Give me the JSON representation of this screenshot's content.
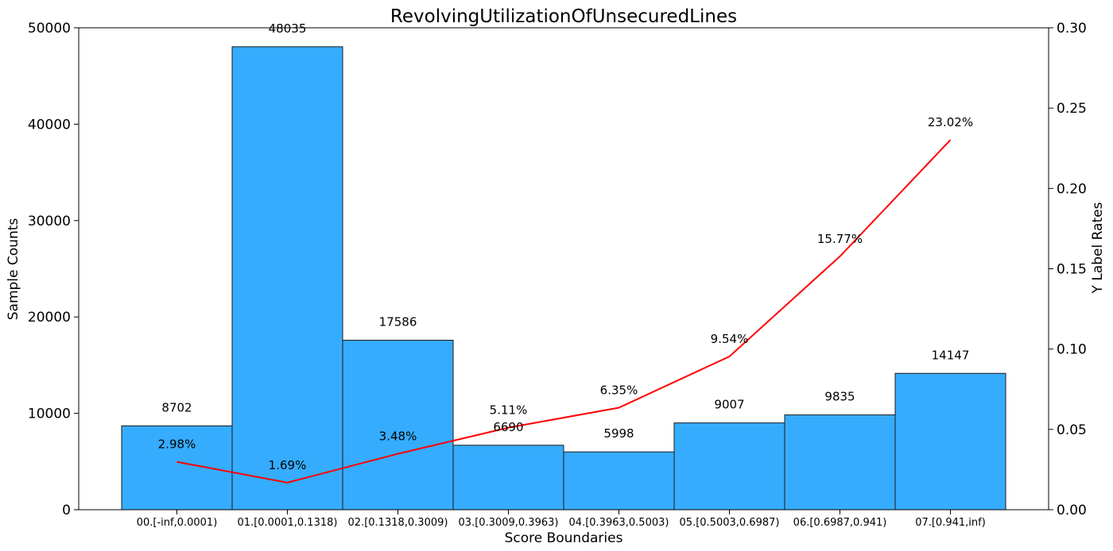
{
  "chart_data": {
    "type": "bar",
    "title": "RevolvingUtilizationOfUnsecuredLines",
    "xlabel": "Score Boundaries",
    "ylabel": "Sample Counts",
    "y2label": "Y Label Rates",
    "categories": [
      "00.[-inf,0.0001)",
      "01.[0.0001,0.1318)",
      "02.[0.1318,0.3009)",
      "03.[0.3009,0.3963)",
      "04.[0.3963,0.5003)",
      "05.[0.5003,0.6987)",
      "06.[0.6987,0.941)",
      "07.[0.941,inf)"
    ],
    "values": [
      8702,
      48035,
      17586,
      6690,
      5998,
      9007,
      9835,
      14147
    ],
    "value_labels": [
      "8702",
      "48035",
      "17586",
      "6690",
      "5998",
      "9007",
      "9835",
      "14147"
    ],
    "rates": [
      0.0298,
      0.0169,
      0.0348,
      0.0511,
      0.0635,
      0.0954,
      0.1577,
      0.2302
    ],
    "rate_labels": [
      "2.98%",
      "1.69%",
      "3.48%",
      "5.11%",
      "6.35%",
      "9.54%",
      "15.77%",
      "23.02%"
    ],
    "ylim": [
      0,
      50000
    ],
    "y2lim": [
      0,
      0.3
    ],
    "yticks": [
      0,
      10000,
      20000,
      30000,
      40000,
      50000
    ],
    "yticklabels": [
      "0",
      "10000",
      "20000",
      "30000",
      "40000",
      "50000"
    ],
    "y2ticks": [
      0,
      0.05,
      0.1,
      0.15,
      0.2,
      0.25,
      0.3
    ],
    "y2ticklabels": [
      "0.00",
      "0.05",
      "0.10",
      "0.15",
      "0.20",
      "0.25",
      "0.30"
    ],
    "bar_color": "#36acfe",
    "bar_edge_color": "#1a1a1a",
    "line_color": "#ff0000",
    "grid": false
  }
}
